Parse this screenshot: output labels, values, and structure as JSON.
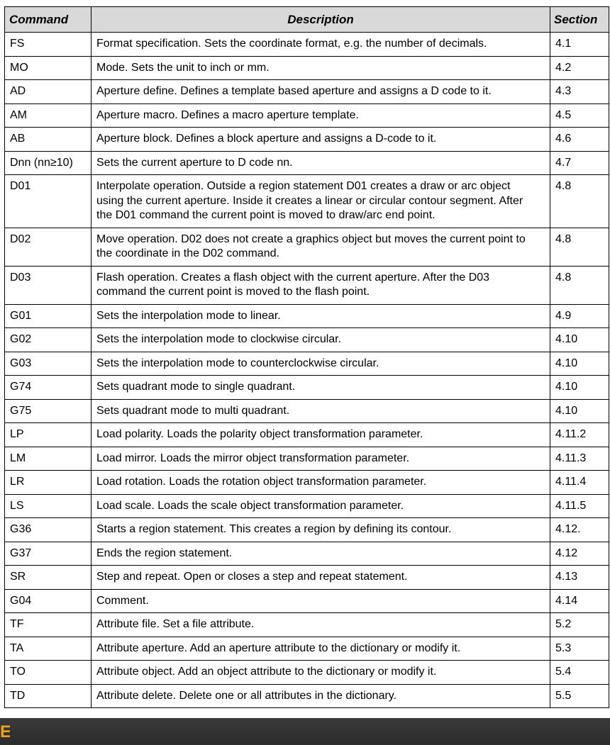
{
  "table": {
    "headers": {
      "command": "Command",
      "description": "Description",
      "section": "Section"
    },
    "rows": [
      {
        "command": "FS",
        "description": "Format specification. Sets the coordinate format, e.g. the number of decimals.",
        "section": "4.1"
      },
      {
        "command": "MO",
        "description": "Mode. Sets the unit to inch or mm.",
        "section": "4.2"
      },
      {
        "command": "AD",
        "description": "Aperture define. Defines a template based aperture and assigns a D code to it.",
        "section": "4.3"
      },
      {
        "command": "AM",
        "description": "Aperture macro. Defines a macro aperture template.",
        "section": "4.5"
      },
      {
        "command": "AB",
        "description": "Aperture block. Defines a block aperture and assigns a D-code to it.",
        "section": "4.6"
      },
      {
        "command": "Dnn (nn≥10)",
        "description": "Sets the current aperture to D code nn.",
        "section": "4.7"
      },
      {
        "command": "D01",
        "description": "Interpolate operation. Outside a region statement D01 creates a draw or arc object using the current aperture. Inside it creates a linear or circular contour segment. After the D01 command the current point is moved to draw/arc end point.",
        "section": "4.8"
      },
      {
        "command": "D02",
        "description": "Move operation. D02 does not create a graphics object but moves the current point to the coordinate in the D02 command.",
        "section": "4.8"
      },
      {
        "command": "D03",
        "description": "Flash operation. Creates a flash object with the current aperture.  After the D03 command the current point is moved to the flash point.",
        "section": "4.8"
      },
      {
        "command": "G01",
        "description": "Sets the interpolation mode to linear.",
        "section": "4.9"
      },
      {
        "command": "G02",
        "description": "Sets the interpolation mode to clockwise circular.",
        "section": "4.10"
      },
      {
        "command": "G03",
        "description": "Sets the interpolation mode to counterclockwise circular.",
        "section": "4.10"
      },
      {
        "command": "G74",
        "description": "Sets quadrant mode to single quadrant.",
        "section": "4.10"
      },
      {
        "command": "G75",
        "description": "Sets quadrant mode to multi quadrant.",
        "section": "4.10"
      },
      {
        "command": "LP",
        "description": "Load polarity. Loads the polarity object transformation parameter.",
        "section": "4.11.2"
      },
      {
        "command": "LM",
        "description": "Load mirror. Loads the mirror object transformation parameter.",
        "section": "4.11.3"
      },
      {
        "command": "LR",
        "description": "Load rotation. Loads the rotation object transformation parameter.",
        "section": "4.11.4"
      },
      {
        "command": "LS",
        "description": "Load scale. Loads the scale object transformation parameter.",
        "section": "4.11.5"
      },
      {
        "command": "G36",
        "description": "Starts a region statement. This creates a region by defining its contour.",
        "section": "4.12."
      },
      {
        "command": "G37",
        "description": "Ends the region statement.",
        "section": "4.12"
      },
      {
        "command": "SR",
        "description": "Step and repeat. Open or closes a step and repeat statement.",
        "section": "4.13"
      },
      {
        "command": "G04",
        "description": "Comment.",
        "section": "4.14"
      },
      {
        "command": "TF",
        "description": "Attribute file. Set a file attribute.",
        "section": "5.2"
      },
      {
        "command": "TA",
        "description": "Attribute aperture. Add an aperture attribute to the dictionary or modify it.",
        "section": "5.3"
      },
      {
        "command": "TO",
        "description": "Attribute object. Add an object attribute to the dictionary or modify it.",
        "section": "5.4"
      },
      {
        "command": "TD",
        "description": "Attribute delete. Delete one or all attributes in the dictionary.",
        "section": "5.5"
      }
    ]
  },
  "footer": {
    "logo_glyph": "E",
    "accent_color": "#f0a020"
  }
}
